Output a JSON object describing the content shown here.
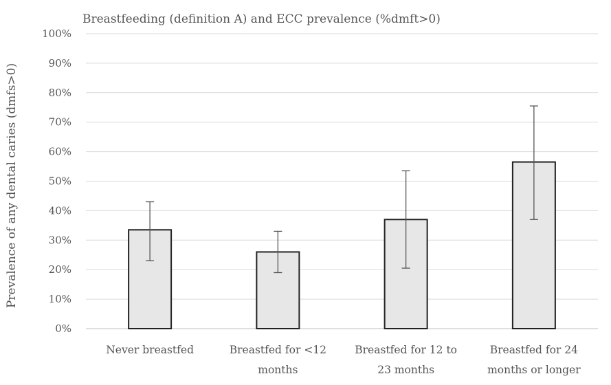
{
  "chart_data": {
    "type": "bar",
    "title": "Breastfeeding (definition A) and ECC prevalence (%dmft>0)",
    "xlabel": "",
    "ylabel": "Prevalence of any dental caries (dmfs>0)",
    "ylim": [
      0,
      100
    ],
    "yticks": [
      "0%",
      "10%",
      "20%",
      "30%",
      "40%",
      "50%",
      "60%",
      "70%",
      "80%",
      "90%",
      "100%"
    ],
    "grid": true,
    "legend": "none",
    "categories": [
      [
        "Never breastfed"
      ],
      [
        "Breastfed for <12",
        "months"
      ],
      [
        "Breastfed for 12 to",
        "23 months"
      ],
      [
        "Breastfed for 24",
        "months or longer"
      ]
    ],
    "values": [
      33.5,
      26,
      37,
      56.5
    ],
    "error_low": [
      23,
      19,
      20.5,
      37
    ],
    "error_high": [
      43,
      33,
      53.5,
      75.5
    ],
    "colors": {
      "bar_fill": "#e7e7e7",
      "bar_stroke": "#222222",
      "grid": "#d9d9d9",
      "text": "#555555",
      "error": "#555555"
    }
  }
}
